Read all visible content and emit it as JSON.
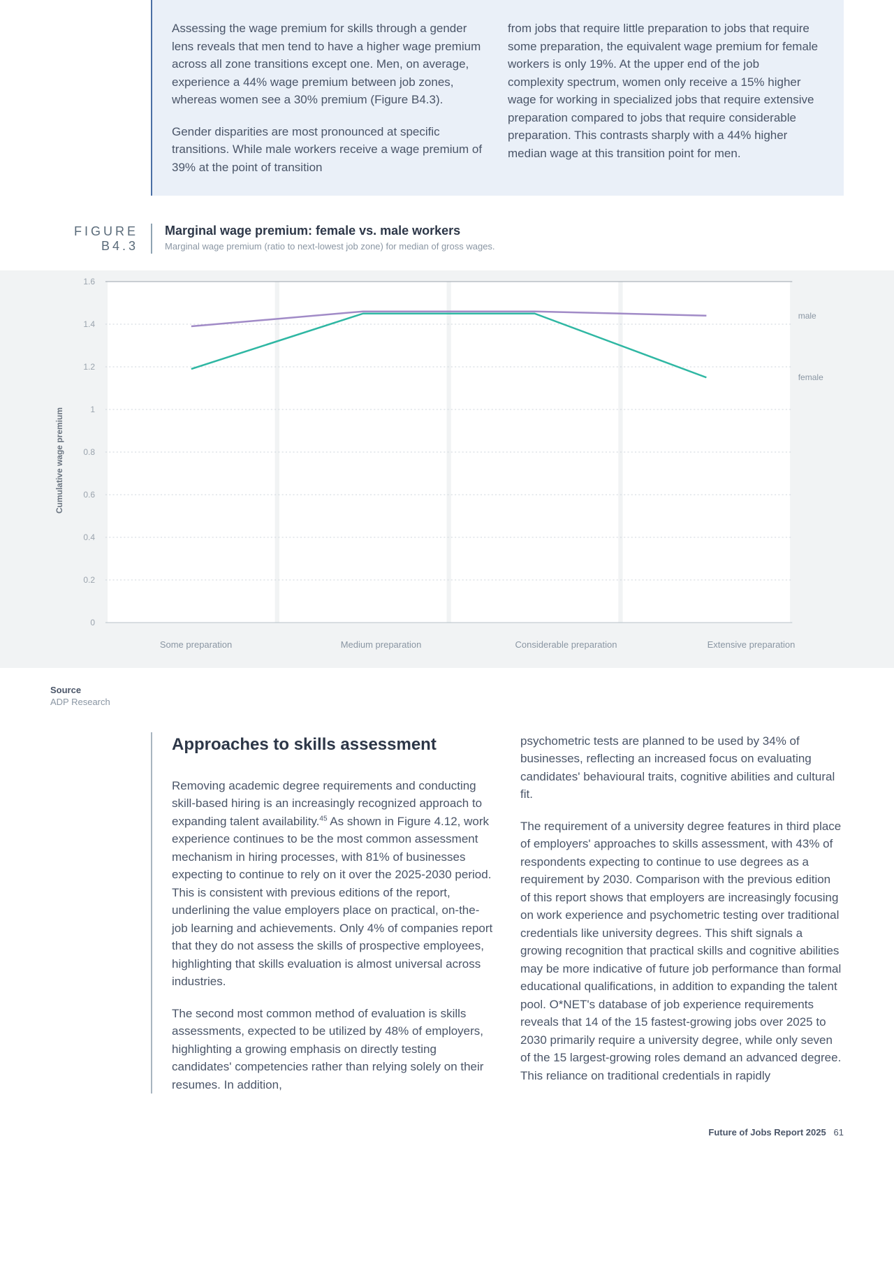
{
  "bluebox": {
    "left_p1": "Assessing the wage premium for skills through a gender lens reveals that men tend to have a higher wage premium across all zone transitions except one. Men, on average, experience a 44% wage premium between job zones, whereas women see a 30% premium (Figure B4.3).",
    "left_p2": "Gender disparities are most pronounced at specific transitions. While male workers receive a wage premium of 39% at the point of transition",
    "right_p1": "from jobs that require little preparation to jobs that require some preparation, the equivalent wage premium for female workers is only 19%. At the upper end of the job complexity spectrum, women only receive a 15% higher wage for working in specialized jobs that require extensive preparation compared to jobs that require considerable preparation. This contrasts sharply with a 44% higher median wage at this transition point for men."
  },
  "figure": {
    "label": "FIGURE B4.3",
    "title": "Marginal wage premium: female vs. male workers",
    "subtitle": "Marginal wage premium (ratio to next-lowest job zone) for median of gross wages.",
    "yaxis_title": "Cumulative wage premium",
    "source_h": "Source",
    "source_t": "ADP Research",
    "chart": {
      "type": "line",
      "background_color": "#f1f3f4",
      "grid_color": "#cfd6dc",
      "panel_color": "#ffffff",
      "ylim": [
        0,
        1.6
      ],
      "ytick_step": 0.2,
      "yticks": [
        "0",
        "0.2",
        "0.4",
        "0.6",
        "0.8",
        "1",
        "1.2",
        "1.4",
        "1.6"
      ],
      "categories": [
        "Some preparation",
        "Medium preparation",
        "Considerable preparation",
        "Extensive preparation"
      ],
      "line_width": 2.5,
      "series": [
        {
          "name": "male",
          "color": "#a18bc7",
          "values": [
            1.39,
            1.46,
            1.46,
            1.44
          ]
        },
        {
          "name": "female",
          "color": "#2fb7a3",
          "values": [
            1.19,
            1.45,
            1.45,
            1.15
          ]
        }
      ]
    }
  },
  "body": {
    "heading": "Approaches to skills assessment",
    "left_p1a": "Removing academic degree requirements and conducting skill-based hiring is an increasingly recognized approach to expanding talent availability.",
    "left_p1_sup": "45",
    "left_p1b": " As shown in Figure 4.12, work experience continues to be the most common assessment mechanism in hiring processes, with 81% of businesses expecting to continue to rely on it over the 2025-2030 period. This is consistent with previous editions of the report, underlining the value employers place on practical, on-the-job learning and achievements. Only 4% of companies report that they do not assess the skills of prospective employees, highlighting that skills evaluation is almost universal across industries.",
    "left_p2": "The second most common method of evaluation is skills assessments, expected to be utilized by 48% of employers, highlighting a growing emphasis on directly testing candidates' competencies rather than relying solely on their resumes. In addition,",
    "right_p1": "psychometric tests are planned to be used by 34% of businesses, reflecting an increased focus on evaluating candidates' behavioural traits, cognitive abilities and cultural fit.",
    "right_p2": "The requirement of a university degree features in third place of employers' approaches to skills assessment, with 43% of respondents expecting to continue to use degrees as a requirement by 2030. Comparison with the previous edition of this report shows that employers are increasingly focusing on work experience and psychometric testing over traditional credentials like university degrees. This shift signals a growing recognition that practical skills and cognitive abilities may be more indicative of future job performance than formal educational qualifications, in addition to expanding the talent pool. O*NET's database of job experience requirements reveals that 14 of the 15 fastest-growing jobs over 2025 to 2030 primarily require a university degree, while only seven of the 15 largest-growing roles demand an advanced degree. This reliance on traditional credentials in rapidly"
  },
  "footer": {
    "title": "Future of Jobs Report 2025",
    "page": "61"
  }
}
